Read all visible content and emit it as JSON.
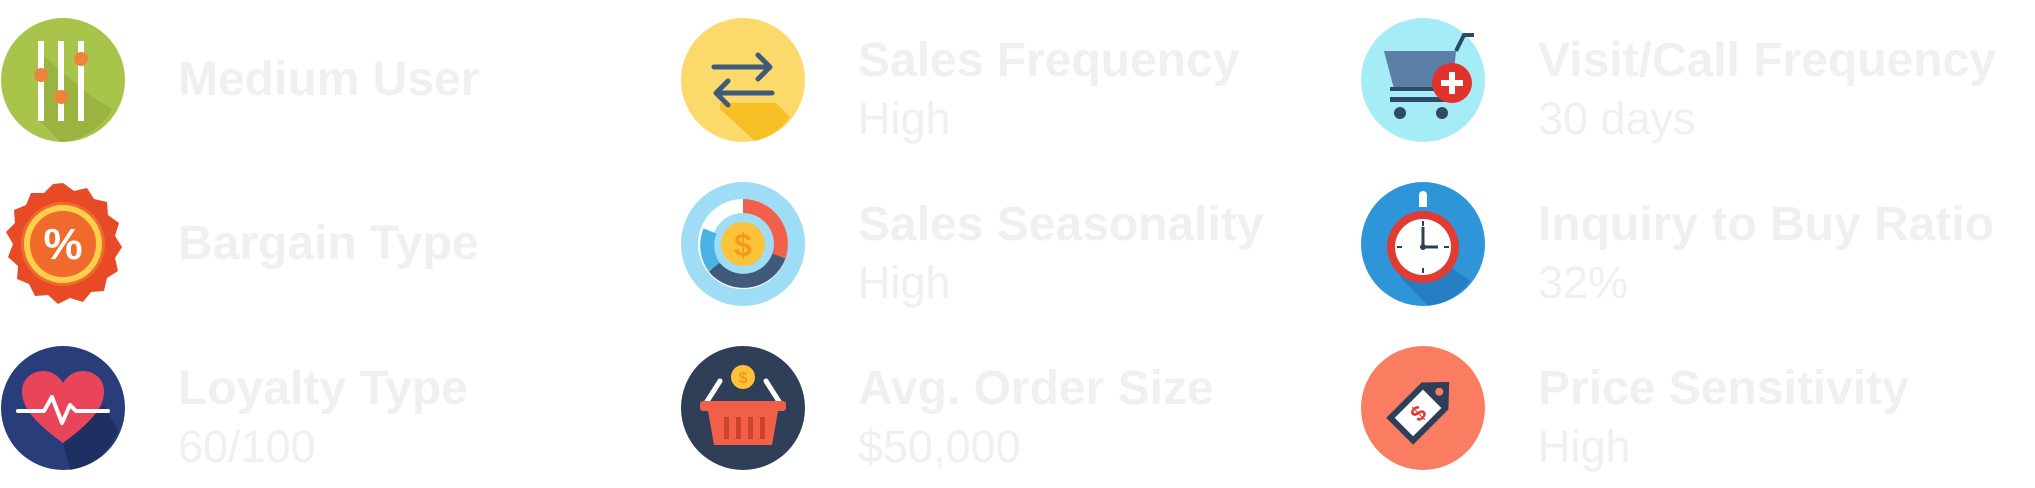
{
  "attributes": [
    {
      "id": "medium-user",
      "label": "Medium User",
      "value": "",
      "icon": "sliders-icon"
    },
    {
      "id": "sales-frequency",
      "label": "Sales Frequency",
      "value": "High",
      "icon": "repeat-arrows-icon"
    },
    {
      "id": "visit-call-frequency",
      "label": "Visit/Call Frequency",
      "value": "30 days",
      "icon": "shopping-cart-add-icon"
    },
    {
      "id": "bargain-type",
      "label": "Bargain Type",
      "value": "",
      "icon": "percent-badge-icon"
    },
    {
      "id": "sales-seasonality",
      "label": "Sales Seasonality",
      "value": "High",
      "icon": "donut-dollar-icon"
    },
    {
      "id": "inquiry-to-buy-ratio",
      "label": "Inquiry to Buy Ratio",
      "value": "32%",
      "icon": "stopwatch-icon"
    },
    {
      "id": "loyalty-type",
      "label": "Loyalty Type",
      "value": "60/100",
      "icon": "heart-pulse-icon"
    },
    {
      "id": "avg-order-size",
      "label": "Avg. Order Size",
      "value": "$50,000",
      "icon": "basket-coin-icon"
    },
    {
      "id": "price-sensitivity",
      "label": "Price Sensitivity",
      "value": "High",
      "icon": "price-tag-icon"
    }
  ],
  "icons": {
    "currency_symbol": "$",
    "percent_symbol": "%"
  },
  "colors": {
    "text": "#f0f0f0",
    "sliders_bg": "#a8c44a",
    "repeat_bg": "#fcd96b",
    "cart_bg": "#a6ecf7",
    "percent_bg": "#e84a25",
    "donut_bg": "#9fdcf5",
    "stopwatch_bg": "#2f95d9",
    "heart_bg": "#283d7a",
    "basket_bg": "#2f3f57",
    "tag_bg": "#fa7d62"
  }
}
